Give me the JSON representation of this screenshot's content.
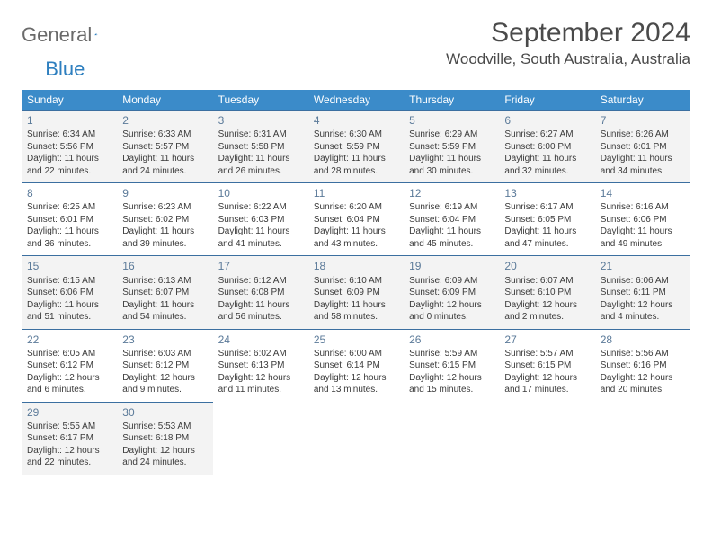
{
  "logo": {
    "text1": "General",
    "text2": "Blue"
  },
  "title": "September 2024",
  "location": "Woodville, South Australia, Australia",
  "colors": {
    "header_bg": "#3b8bc9",
    "header_text": "#ffffff",
    "row_alt_bg": "#f3f3f3",
    "cell_border": "#3b6fa0",
    "daynum_color": "#5b7a99",
    "body_text": "#3a3a3a",
    "logo_gray": "#6a6a6a",
    "logo_blue": "#2e7fbf"
  },
  "dayNames": [
    "Sunday",
    "Monday",
    "Tuesday",
    "Wednesday",
    "Thursday",
    "Friday",
    "Saturday"
  ],
  "weeks": [
    [
      {
        "n": "1",
        "sr": "Sunrise: 6:34 AM",
        "ss": "Sunset: 5:56 PM",
        "d1": "Daylight: 11 hours",
        "d2": "and 22 minutes."
      },
      {
        "n": "2",
        "sr": "Sunrise: 6:33 AM",
        "ss": "Sunset: 5:57 PM",
        "d1": "Daylight: 11 hours",
        "d2": "and 24 minutes."
      },
      {
        "n": "3",
        "sr": "Sunrise: 6:31 AM",
        "ss": "Sunset: 5:58 PM",
        "d1": "Daylight: 11 hours",
        "d2": "and 26 minutes."
      },
      {
        "n": "4",
        "sr": "Sunrise: 6:30 AM",
        "ss": "Sunset: 5:59 PM",
        "d1": "Daylight: 11 hours",
        "d2": "and 28 minutes."
      },
      {
        "n": "5",
        "sr": "Sunrise: 6:29 AM",
        "ss": "Sunset: 5:59 PM",
        "d1": "Daylight: 11 hours",
        "d2": "and 30 minutes."
      },
      {
        "n": "6",
        "sr": "Sunrise: 6:27 AM",
        "ss": "Sunset: 6:00 PM",
        "d1": "Daylight: 11 hours",
        "d2": "and 32 minutes."
      },
      {
        "n": "7",
        "sr": "Sunrise: 6:26 AM",
        "ss": "Sunset: 6:01 PM",
        "d1": "Daylight: 11 hours",
        "d2": "and 34 minutes."
      }
    ],
    [
      {
        "n": "8",
        "sr": "Sunrise: 6:25 AM",
        "ss": "Sunset: 6:01 PM",
        "d1": "Daylight: 11 hours",
        "d2": "and 36 minutes."
      },
      {
        "n": "9",
        "sr": "Sunrise: 6:23 AM",
        "ss": "Sunset: 6:02 PM",
        "d1": "Daylight: 11 hours",
        "d2": "and 39 minutes."
      },
      {
        "n": "10",
        "sr": "Sunrise: 6:22 AM",
        "ss": "Sunset: 6:03 PM",
        "d1": "Daylight: 11 hours",
        "d2": "and 41 minutes."
      },
      {
        "n": "11",
        "sr": "Sunrise: 6:20 AM",
        "ss": "Sunset: 6:04 PM",
        "d1": "Daylight: 11 hours",
        "d2": "and 43 minutes."
      },
      {
        "n": "12",
        "sr": "Sunrise: 6:19 AM",
        "ss": "Sunset: 6:04 PM",
        "d1": "Daylight: 11 hours",
        "d2": "and 45 minutes."
      },
      {
        "n": "13",
        "sr": "Sunrise: 6:17 AM",
        "ss": "Sunset: 6:05 PM",
        "d1": "Daylight: 11 hours",
        "d2": "and 47 minutes."
      },
      {
        "n": "14",
        "sr": "Sunrise: 6:16 AM",
        "ss": "Sunset: 6:06 PM",
        "d1": "Daylight: 11 hours",
        "d2": "and 49 minutes."
      }
    ],
    [
      {
        "n": "15",
        "sr": "Sunrise: 6:15 AM",
        "ss": "Sunset: 6:06 PM",
        "d1": "Daylight: 11 hours",
        "d2": "and 51 minutes."
      },
      {
        "n": "16",
        "sr": "Sunrise: 6:13 AM",
        "ss": "Sunset: 6:07 PM",
        "d1": "Daylight: 11 hours",
        "d2": "and 54 minutes."
      },
      {
        "n": "17",
        "sr": "Sunrise: 6:12 AM",
        "ss": "Sunset: 6:08 PM",
        "d1": "Daylight: 11 hours",
        "d2": "and 56 minutes."
      },
      {
        "n": "18",
        "sr": "Sunrise: 6:10 AM",
        "ss": "Sunset: 6:09 PM",
        "d1": "Daylight: 11 hours",
        "d2": "and 58 minutes."
      },
      {
        "n": "19",
        "sr": "Sunrise: 6:09 AM",
        "ss": "Sunset: 6:09 PM",
        "d1": "Daylight: 12 hours",
        "d2": "and 0 minutes."
      },
      {
        "n": "20",
        "sr": "Sunrise: 6:07 AM",
        "ss": "Sunset: 6:10 PM",
        "d1": "Daylight: 12 hours",
        "d2": "and 2 minutes."
      },
      {
        "n": "21",
        "sr": "Sunrise: 6:06 AM",
        "ss": "Sunset: 6:11 PM",
        "d1": "Daylight: 12 hours",
        "d2": "and 4 minutes."
      }
    ],
    [
      {
        "n": "22",
        "sr": "Sunrise: 6:05 AM",
        "ss": "Sunset: 6:12 PM",
        "d1": "Daylight: 12 hours",
        "d2": "and 6 minutes."
      },
      {
        "n": "23",
        "sr": "Sunrise: 6:03 AM",
        "ss": "Sunset: 6:12 PM",
        "d1": "Daylight: 12 hours",
        "d2": "and 9 minutes."
      },
      {
        "n": "24",
        "sr": "Sunrise: 6:02 AM",
        "ss": "Sunset: 6:13 PM",
        "d1": "Daylight: 12 hours",
        "d2": "and 11 minutes."
      },
      {
        "n": "25",
        "sr": "Sunrise: 6:00 AM",
        "ss": "Sunset: 6:14 PM",
        "d1": "Daylight: 12 hours",
        "d2": "and 13 minutes."
      },
      {
        "n": "26",
        "sr": "Sunrise: 5:59 AM",
        "ss": "Sunset: 6:15 PM",
        "d1": "Daylight: 12 hours",
        "d2": "and 15 minutes."
      },
      {
        "n": "27",
        "sr": "Sunrise: 5:57 AM",
        "ss": "Sunset: 6:15 PM",
        "d1": "Daylight: 12 hours",
        "d2": "and 17 minutes."
      },
      {
        "n": "28",
        "sr": "Sunrise: 5:56 AM",
        "ss": "Sunset: 6:16 PM",
        "d1": "Daylight: 12 hours",
        "d2": "and 20 minutes."
      }
    ],
    [
      {
        "n": "29",
        "sr": "Sunrise: 5:55 AM",
        "ss": "Sunset: 6:17 PM",
        "d1": "Daylight: 12 hours",
        "d2": "and 22 minutes."
      },
      {
        "n": "30",
        "sr": "Sunrise: 5:53 AM",
        "ss": "Sunset: 6:18 PM",
        "d1": "Daylight: 12 hours",
        "d2": "and 24 minutes."
      },
      null,
      null,
      null,
      null,
      null
    ]
  ]
}
